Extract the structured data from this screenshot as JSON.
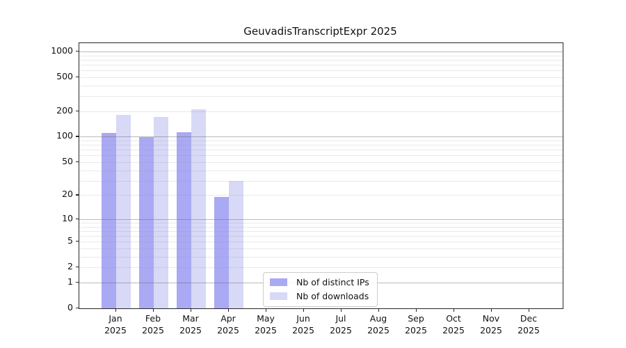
{
  "chart_data": {
    "type": "bar",
    "title": "GeuvadisTranscriptExpr 2025",
    "categories": [
      "Jan 2025",
      "Feb 2025",
      "Mar 2025",
      "Apr 2025",
      "May 2025",
      "Jun 2025",
      "Jul 2025",
      "Aug 2025",
      "Sep 2025",
      "Oct 2025",
      "Nov 2025",
      "Dec 2025"
    ],
    "series": [
      {
        "name": "Nb of distinct IPs",
        "color": "#a9a9f4",
        "values": [
          110,
          99,
          114,
          19,
          0,
          0,
          0,
          0,
          0,
          0,
          0,
          0
        ]
      },
      {
        "name": "Nb of downloads",
        "color": "#d8d8f7",
        "values": [
          180,
          172,
          212,
          30,
          0,
          0,
          0,
          0,
          0,
          0,
          0,
          0
        ]
      }
    ],
    "xlabel": "",
    "ylabel": "",
    "yscale": "log1p",
    "ylim": [
      0,
      1250
    ],
    "yticks": [
      0,
      1,
      2,
      5,
      10,
      20,
      50,
      100,
      200,
      500,
      1000
    ],
    "grid": "on",
    "legend_position": "lower-center"
  },
  "colors": {
    "bar_distinct_ips": "#a9a9f4",
    "bar_downloads": "#d8d8f7",
    "grid_major": "rgba(102,102,102,0.45)",
    "grid_minor": "rgba(153,153,153,0.22)",
    "axis_line": "#262626",
    "text": "#111111",
    "legend_border": "#cccccc",
    "background": "#ffffff"
  }
}
